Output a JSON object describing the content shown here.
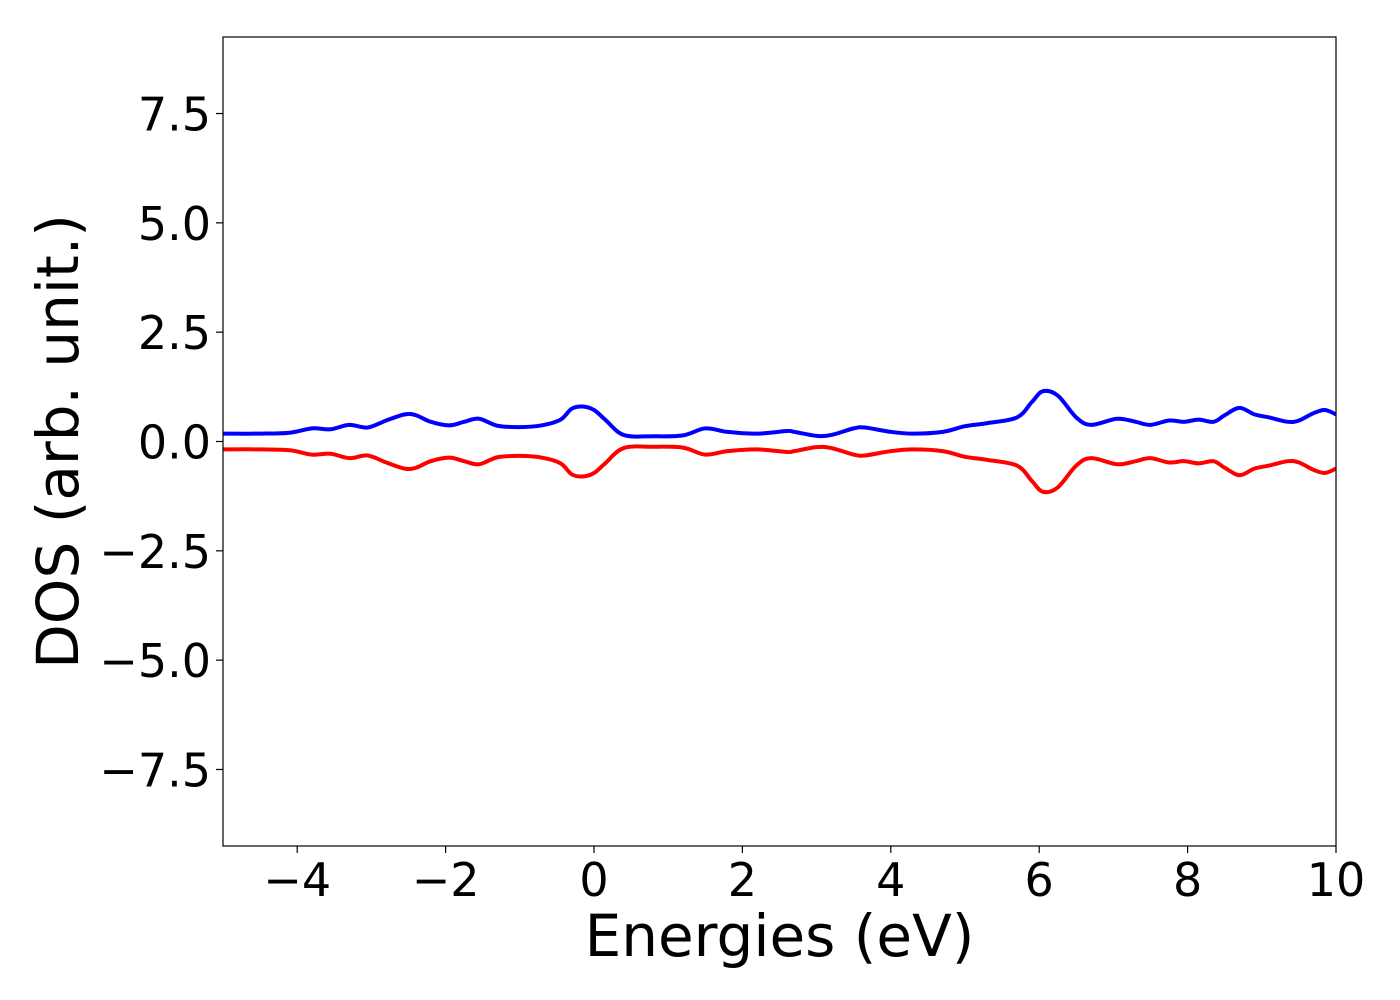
{
  "chart_data": {
    "type": "line",
    "xlabel": "Energies (eV)",
    "ylabel": "DOS (arb. unit.)",
    "xlim": [
      -5,
      10
    ],
    "ylim": [
      -9.25,
      9.25
    ],
    "x_ticks": [
      -4,
      -2,
      0,
      2,
      4,
      6,
      8,
      10
    ],
    "x_tick_labels": [
      "−4",
      "−2",
      "0",
      "2",
      "4",
      "6",
      "8",
      "10"
    ],
    "y_ticks": [
      -7.5,
      -5.0,
      -2.5,
      0.0,
      2.5,
      5.0,
      7.5
    ],
    "y_tick_labels": [
      "−7.5",
      "−5.0",
      "−2.5",
      "0.0",
      "2.5",
      "5.0",
      "7.5"
    ],
    "grid": false,
    "series": [
      {
        "color": "#0000ff",
        "x": [
          -5.0,
          -4.5,
          -4.1,
          -3.8,
          -3.55,
          -3.3,
          -3.05,
          -2.8,
          -2.55,
          -2.4,
          -2.2,
          -1.95,
          -1.75,
          -1.55,
          -1.3,
          -1.0,
          -0.7,
          -0.45,
          -0.3,
          -0.15,
          0.0,
          0.15,
          0.4,
          0.8,
          1.2,
          1.5,
          1.8,
          2.2,
          2.6,
          2.7,
          3.0,
          3.2,
          3.5,
          3.65,
          4.0,
          4.3,
          4.7,
          5.0,
          5.3,
          5.7,
          5.9,
          6.05,
          6.25,
          6.5,
          6.7,
          7.05,
          7.3,
          7.5,
          7.75,
          7.95,
          8.15,
          8.35,
          8.5,
          8.7,
          8.9,
          9.1,
          9.35,
          9.5,
          9.7,
          9.85,
          10.0
        ],
        "y": [
          0.18,
          0.18,
          0.2,
          0.3,
          0.28,
          0.38,
          0.32,
          0.48,
          0.62,
          0.6,
          0.45,
          0.37,
          0.45,
          0.52,
          0.36,
          0.33,
          0.37,
          0.5,
          0.75,
          0.8,
          0.72,
          0.5,
          0.15,
          0.12,
          0.14,
          0.3,
          0.22,
          0.18,
          0.24,
          0.22,
          0.13,
          0.15,
          0.3,
          0.32,
          0.22,
          0.18,
          0.22,
          0.35,
          0.42,
          0.55,
          0.9,
          1.15,
          1.05,
          0.55,
          0.38,
          0.52,
          0.45,
          0.38,
          0.48,
          0.45,
          0.5,
          0.45,
          0.6,
          0.77,
          0.62,
          0.55,
          0.45,
          0.48,
          0.65,
          0.72,
          0.62
        ]
      },
      {
        "color": "#ff0000",
        "x": [
          -5.0,
          -4.5,
          -4.1,
          -3.8,
          -3.55,
          -3.3,
          -3.05,
          -2.8,
          -2.55,
          -2.4,
          -2.2,
          -1.95,
          -1.75,
          -1.55,
          -1.3,
          -1.0,
          -0.7,
          -0.45,
          -0.3,
          -0.15,
          0.0,
          0.15,
          0.4,
          0.8,
          1.2,
          1.5,
          1.8,
          2.2,
          2.6,
          2.7,
          3.0,
          3.2,
          3.5,
          3.65,
          4.0,
          4.3,
          4.7,
          5.0,
          5.3,
          5.7,
          5.9,
          6.05,
          6.25,
          6.5,
          6.7,
          7.05,
          7.3,
          7.5,
          7.75,
          7.95,
          8.15,
          8.35,
          8.5,
          8.7,
          8.9,
          9.1,
          9.35,
          9.5,
          9.7,
          9.85,
          10.0
        ],
        "y": [
          -0.18,
          -0.18,
          -0.2,
          -0.3,
          -0.28,
          -0.38,
          -0.32,
          -0.48,
          -0.62,
          -0.6,
          -0.45,
          -0.37,
          -0.45,
          -0.52,
          -0.36,
          -0.33,
          -0.37,
          -0.5,
          -0.75,
          -0.8,
          -0.72,
          -0.5,
          -0.15,
          -0.12,
          -0.14,
          -0.3,
          -0.22,
          -0.18,
          -0.24,
          -0.22,
          -0.13,
          -0.15,
          -0.3,
          -0.32,
          -0.22,
          -0.18,
          -0.22,
          -0.35,
          -0.42,
          -0.55,
          -0.9,
          -1.15,
          -1.05,
          -0.55,
          -0.38,
          -0.52,
          -0.45,
          -0.38,
          -0.48,
          -0.45,
          -0.5,
          -0.45,
          -0.6,
          -0.77,
          -0.62,
          -0.55,
          -0.45,
          -0.48,
          -0.65,
          -0.72,
          -0.62
        ]
      }
    ]
  }
}
